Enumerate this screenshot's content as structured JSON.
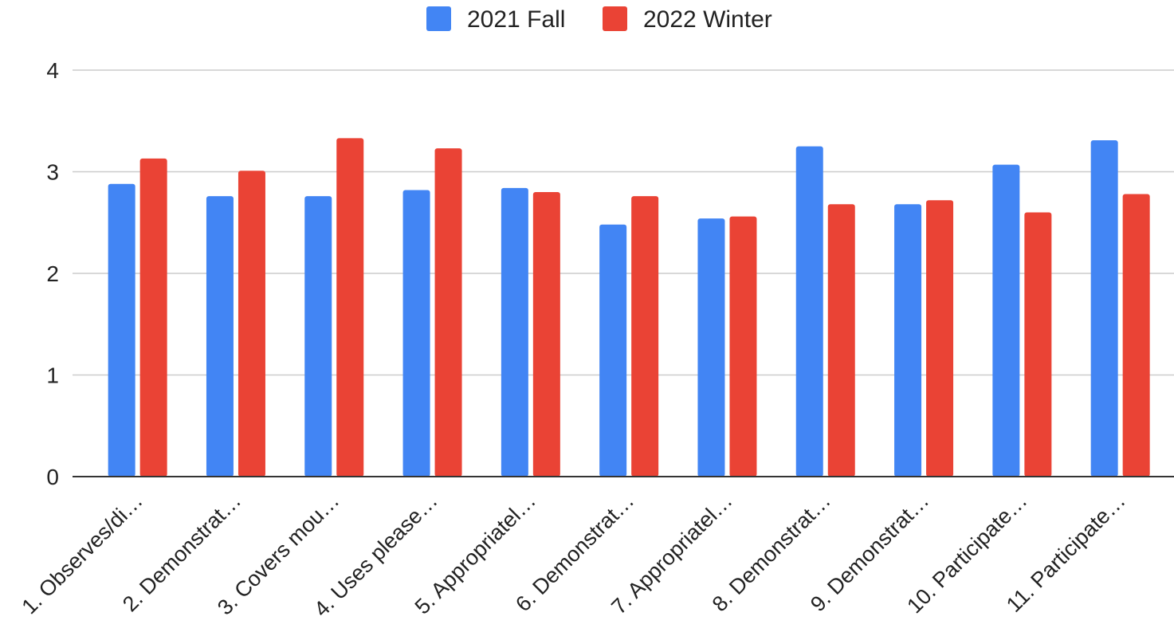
{
  "chart_data": {
    "type": "bar",
    "categories": [
      "1. Observes/di…",
      "2. Demonstrat…",
      "3. Covers mou…",
      "4. Uses please…",
      "5. Appropriatel…",
      "6. Demonstrat…",
      "7. Appropriatel…",
      "8. Demonstrat…",
      "9. Demonstrat…",
      "10. Participate…",
      "11. Participate…"
    ],
    "series": [
      {
        "name": "2021 Fall",
        "color": "#4285f4",
        "values": [
          2.88,
          2.76,
          2.76,
          2.82,
          2.84,
          2.48,
          2.54,
          3.25,
          2.68,
          3.07,
          3.31
        ]
      },
      {
        "name": "2022 Winter",
        "color": "#ea4335",
        "values": [
          3.13,
          3.01,
          3.33,
          3.23,
          2.8,
          2.76,
          2.56,
          2.68,
          2.72,
          2.6,
          2.78
        ]
      }
    ],
    "ylim": [
      0,
      4
    ],
    "yticks": [
      "0",
      "1",
      "2",
      "3",
      "4"
    ],
    "xlabel": "",
    "ylabel": "",
    "title": "",
    "grid": true,
    "legend_position": "top"
  }
}
